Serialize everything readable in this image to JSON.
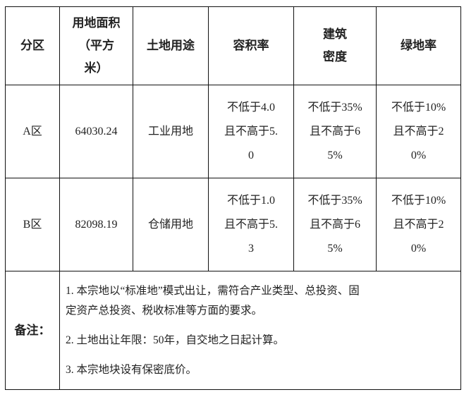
{
  "table": {
    "headers": [
      [
        "分区"
      ],
      [
        "用地面积",
        "（平方",
        "米）"
      ],
      [
        "土地用途"
      ],
      [
        "容积率"
      ],
      [
        "建筑",
        "密度"
      ],
      [
        "绿地率"
      ]
    ],
    "rows": [
      {
        "zone": "A区",
        "area": "64030.24",
        "use": "工业用地",
        "far": [
          "不低于4.0",
          "且不高于5.",
          "0"
        ],
        "density": [
          "不低于35%",
          "且不高于6",
          "5%"
        ],
        "green": [
          "不低于10%",
          "且不高于2",
          "0%"
        ]
      },
      {
        "zone": "B区",
        "area": "82098.19",
        "use": "仓储用地",
        "far": [
          "不低于1.0",
          "且不高于5.",
          "3"
        ],
        "density": [
          "不低于35%",
          "且不高于6",
          "5%"
        ],
        "green": [
          "不低于10%",
          "且不高于2",
          "0%"
        ]
      }
    ],
    "notes": {
      "label": "备注：",
      "items": [
        [
          "1. 本宗地以“标准地”模式出让，需符合产业类型、总投资、固",
          "定资产总投资、税收标准等方面的要求。"
        ],
        [
          "2. 土地出让年限：50年，自交地之日起计算。"
        ],
        [
          "3. 本宗地块设有保密底价。"
        ]
      ]
    }
  }
}
